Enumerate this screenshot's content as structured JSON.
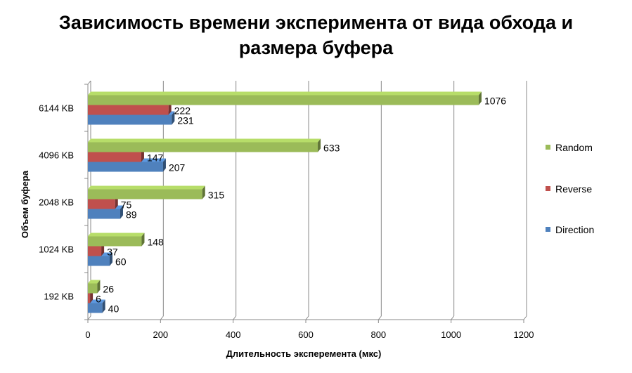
{
  "chart_data": {
    "type": "bar",
    "orientation": "horizontal",
    "three_d": true,
    "title_lines": [
      "Зависимость времени эксперимента от вида обхода и",
      "размера буфера"
    ],
    "xlabel": "Длительность эксперемента (мкс)",
    "ylabel": "Объем буфера",
    "xlim": [
      0,
      1200
    ],
    "xticks": [
      0,
      200,
      400,
      600,
      800,
      1000,
      1200
    ],
    "grid": "vertical",
    "legend_position": "right",
    "categories": [
      "192 KB",
      "1024 KB",
      "2048 KB",
      "4096 KB",
      "6144 KB"
    ],
    "series": [
      {
        "name": "Direction",
        "color": "#4f81bd",
        "values": [
          40,
          60,
          89,
          207,
          231
        ]
      },
      {
        "name": "Reverse",
        "color": "#c0504d",
        "values": [
          6,
          37,
          75,
          147,
          222
        ]
      },
      {
        "name": "Random",
        "color": "#9bbb59",
        "values": [
          26,
          148,
          315,
          633,
          1076
        ]
      }
    ]
  }
}
